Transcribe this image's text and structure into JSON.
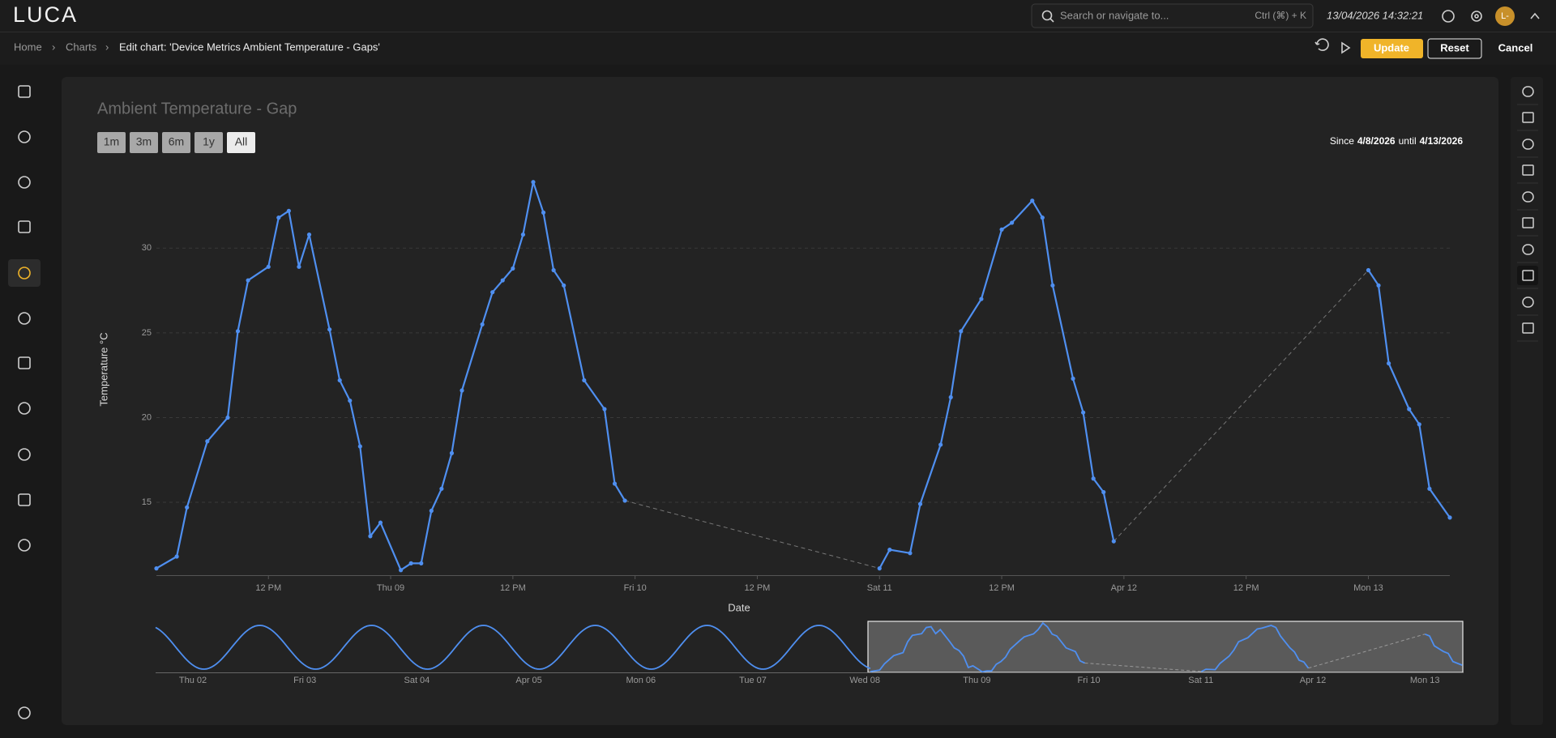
{
  "header": {
    "logo": "LUCA",
    "search_placeholder": "Search or navigate to...",
    "shortcut": "Ctrl (⌘) + K",
    "datetime": "13/04/2026 14:32:21",
    "avatar": "L-"
  },
  "breadcrumb": [
    "Home",
    "Charts",
    "Edit chart: 'Device Metrics Ambient Temperature - Gaps'"
  ],
  "actions": [
    "Update",
    "Reset",
    "Cancel"
  ],
  "chart_data": {
    "type": "line",
    "title": "Ambient Temperature - Gap",
    "range_buttons": [
      "1m",
      "3m",
      "6m",
      "1y",
      "All"
    ],
    "range_text": {
      "since": "Since",
      "start": "4/8/2026",
      "until": "until",
      "end": "4/13/2026"
    },
    "x_label": "Date",
    "y_label": "Temperature °C",
    "color": "#4f8ff0",
    "grid": true,
    "x": [
      "2026-04-08T01:00",
      "2026-04-08T03:00",
      "2026-04-08T04:00",
      "2026-04-08T06:00",
      "2026-04-08T08:00",
      "2026-04-08T09:00",
      "2026-04-08T10:00",
      "2026-04-08T12:00",
      "2026-04-08T13:00",
      "2026-04-08T14:00",
      "2026-04-08T15:00",
      "2026-04-08T16:00",
      "2026-04-08T18:00",
      "2026-04-08T19:00",
      "2026-04-08T20:00",
      "2026-04-08T21:00",
      "2026-04-08T22:00",
      "2026-04-08T23:00",
      "2026-04-09T01:00",
      "2026-04-09T02:00",
      "2026-04-09T03:00",
      "2026-04-09T04:00",
      "2026-04-09T05:00",
      "2026-04-09T06:00",
      "2026-04-09T07:00",
      "2026-04-09T09:00",
      "2026-04-09T10:00",
      "2026-04-09T11:00",
      "2026-04-09T12:00",
      "2026-04-09T13:00",
      "2026-04-09T14:00",
      "2026-04-09T15:00",
      "2026-04-09T16:00",
      "2026-04-09T17:00",
      "2026-04-09T19:00",
      "2026-04-09T21:00",
      "2026-04-09T22:00",
      "2026-04-09T23:00",
      "2026-04-11T00:00",
      "2026-04-11T01:00",
      "2026-04-11T03:00",
      "2026-04-11T04:00",
      "2026-04-11T06:00",
      "2026-04-11T07:00",
      "2026-04-11T08:00",
      "2026-04-11T10:00",
      "2026-04-11T12:00",
      "2026-04-11T13:00",
      "2026-04-11T15:00",
      "2026-04-11T16:00",
      "2026-04-11T17:00",
      "2026-04-11T19:00",
      "2026-04-11T20:00",
      "2026-04-11T21:00",
      "2026-04-11T22:00",
      "2026-04-11T23:00",
      "2026-04-13T00:00",
      "2026-04-13T01:00",
      "2026-04-13T02:00",
      "2026-04-13T04:00",
      "2026-04-13T05:00",
      "2026-04-13T06:00",
      "2026-04-13T08:00"
    ],
    "values": [
      11.1,
      11.8,
      14.7,
      18.6,
      20.0,
      25.1,
      28.1,
      28.9,
      31.8,
      32.2,
      28.9,
      30.8,
      25.2,
      22.2,
      21.0,
      18.3,
      13.0,
      13.8,
      11.0,
      11.4,
      11.4,
      14.5,
      15.8,
      17.9,
      21.6,
      25.5,
      27.4,
      28.1,
      28.8,
      30.8,
      33.9,
      32.1,
      28.7,
      27.8,
      22.2,
      20.5,
      16.1,
      15.1,
      11.1,
      12.2,
      12.0,
      14.9,
      18.4,
      21.2,
      25.1,
      27.0,
      31.1,
      31.5,
      32.8,
      31.8,
      27.8,
      22.3,
      20.3,
      16.4,
      15.6,
      12.7,
      28.7,
      27.8,
      23.2,
      20.5,
      19.6,
      15.8,
      14.1
    ],
    "xlim": [
      "2026-04-08T01:00",
      "2026-04-13T08:00"
    ],
    "xticks": [
      {
        "value": "2026-04-08T12:00",
        "label": "12 PM"
      },
      {
        "value": "2026-04-09T00:00",
        "label": "Thu 09"
      },
      {
        "value": "2026-04-09T12:00",
        "label": "12 PM"
      },
      {
        "value": "2026-04-10T00:00",
        "label": "Fri 10"
      },
      {
        "value": "2026-04-10T12:00",
        "label": "12 PM"
      },
      {
        "value": "2026-04-11T00:00",
        "label": "Sat 11"
      },
      {
        "value": "2026-04-11T12:00",
        "label": "12 PM"
      },
      {
        "value": "2026-04-12T00:00",
        "label": "Apr 12"
      },
      {
        "value": "2026-04-12T12:00",
        "label": "12 PM"
      },
      {
        "value": "2026-04-13T00:00",
        "label": "Mon 13"
      }
    ],
    "ylim": [
      10.7,
      34.7
    ],
    "yticks": [
      15,
      20,
      25,
      30
    ]
  },
  "navigator": {
    "labels": [
      "Thu 02",
      "Fri 03",
      "Sat 04",
      "Apr 05",
      "Mon 06",
      "Tue 07",
      "Wed 08",
      "Thu 09",
      "Fri 10",
      "Sat 11",
      "Apr 12",
      "Mon 13"
    ]
  }
}
